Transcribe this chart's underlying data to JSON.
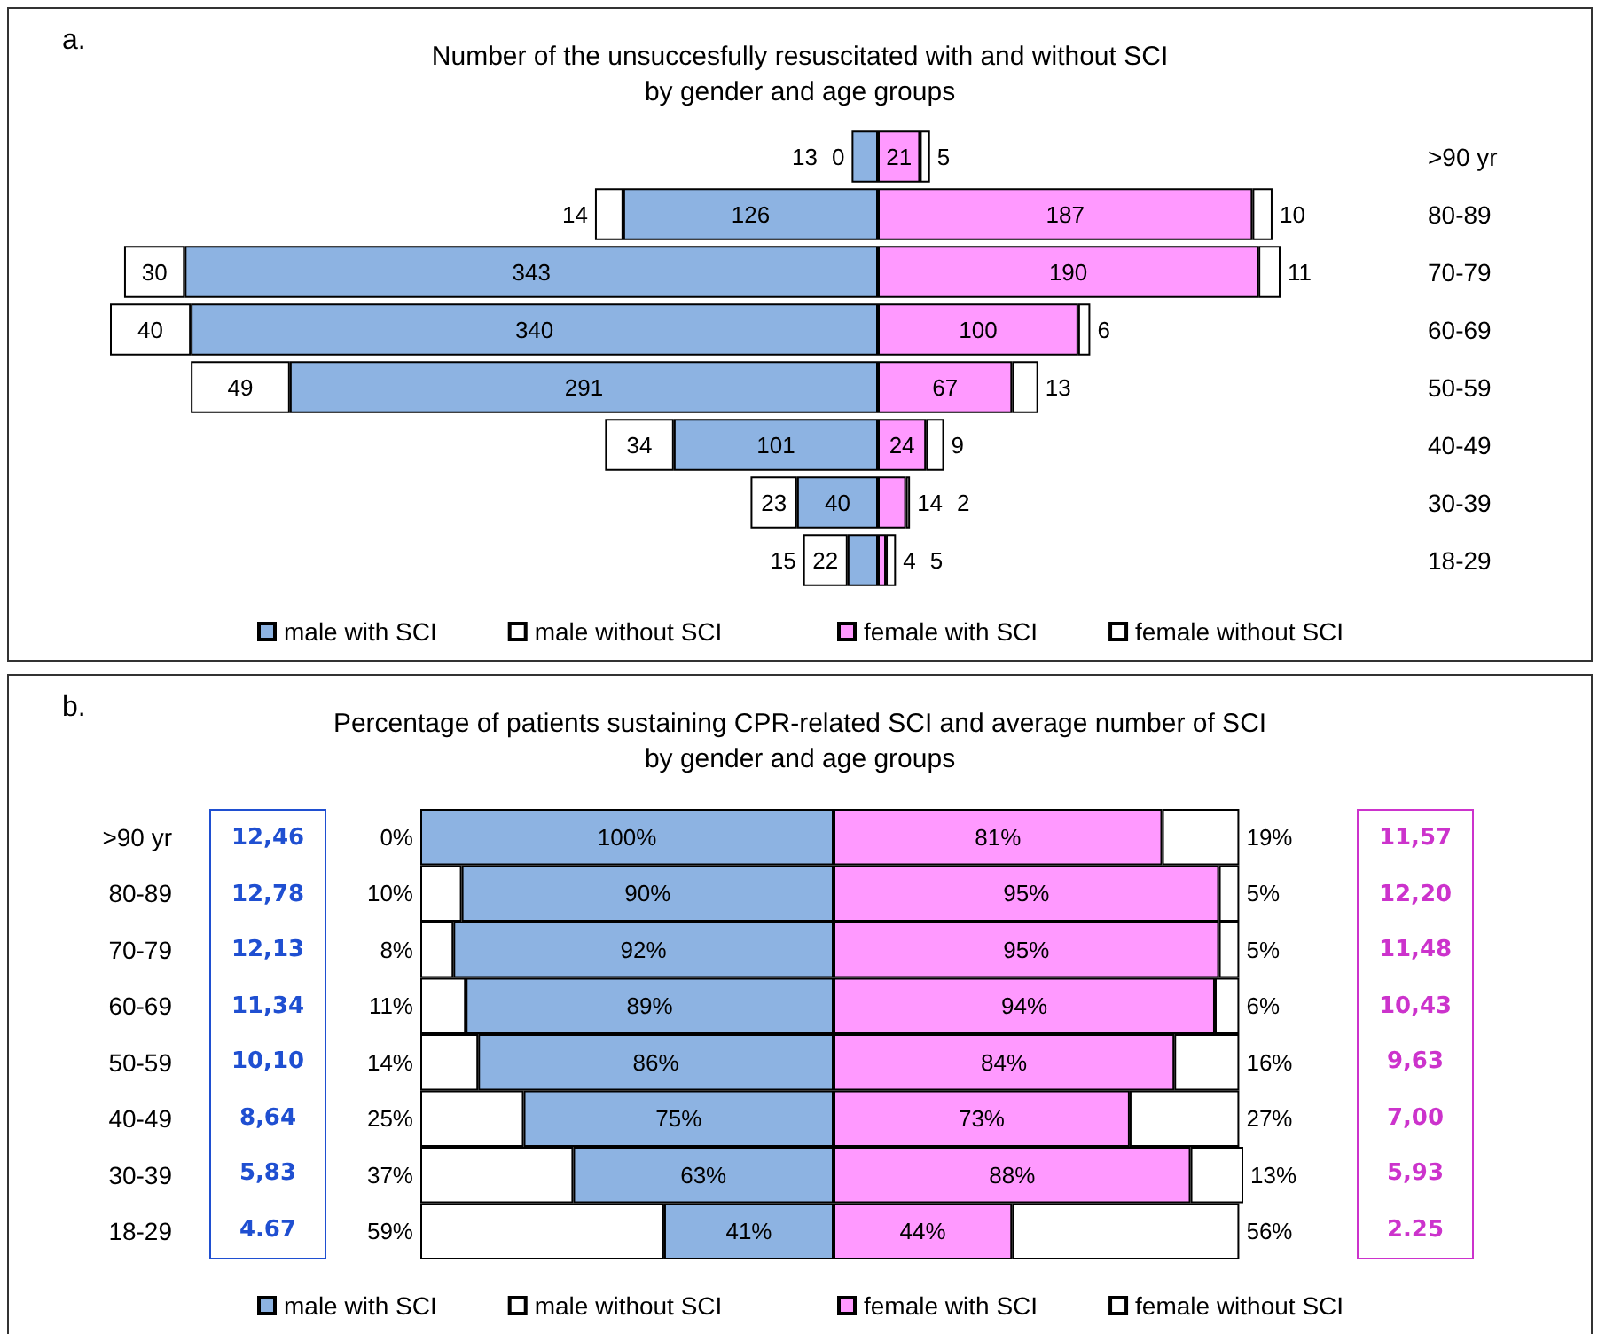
{
  "chart_data": [
    {
      "type": "bar",
      "orientation": "horizontal",
      "stacked": true,
      "title": "Number of the unsuccesfully resuscitated with and without SCI\nby gender and age groups",
      "annotations": [
        "a."
      ],
      "categories": [
        ">90 yr",
        "80-89",
        "70-79",
        "60-69",
        "50-59",
        "40-49",
        "30-39",
        "18-29"
      ],
      "legend": "bottom",
      "tick_labels": "y",
      "series": [
        {
          "name": "male with SCI",
          "color": "#8db3e2",
          "values": [
            13,
            126,
            343,
            340,
            291,
            101,
            40,
            15
          ],
          "value_labels": [
            "13",
            "126",
            "343",
            "340",
            "291",
            "101",
            "40",
            "15"
          ]
        },
        {
          "name": "male without SCI",
          "color": "#ffffff",
          "values": [
            0,
            14,
            30,
            40,
            49,
            34,
            23,
            22
          ],
          "value_labels": [
            "0",
            "14",
            "30",
            "40",
            "49",
            "34",
            "23",
            "22"
          ]
        }
      ]
    },
    {
      "type": "bar",
      "orientation": "horizontal",
      "stacked": true,
      "categories": [
        null,
        null,
        null,
        null,
        null,
        null,
        null,
        null
      ],
      "legend": "bottom",
      "series": [
        {
          "name": "female with SCI",
          "color": "#ff99ff",
          "values": [
            21,
            187,
            190,
            100,
            67,
            24,
            14,
            4
          ],
          "value_labels": [
            "21",
            "187",
            "190",
            "100",
            "67",
            "24",
            "14",
            "4"
          ]
        },
        {
          "name": "female without SCI",
          "color": "#ffffff",
          "values": [
            5,
            10,
            11,
            6,
            13,
            9,
            2,
            5
          ],
          "value_labels": [
            "5",
            "10",
            "11",
            "6",
            "13",
            "9",
            "2",
            "5"
          ]
        }
      ]
    },
    {
      "type": "other",
      "color": "#1f4fd1",
      "annotations": [
        "12,46",
        "12,78",
        "12,13",
        "11,34",
        "10,10",
        "8,64",
        "5,83",
        "4.67"
      ]
    },
    {
      "type": "bar",
      "orientation": "horizontal",
      "stacked": true,
      "title": "Percentage of patients sustaining CPR-related SCI and average number of SCI\nby gender and age groups",
      "annotations": [
        "b."
      ],
      "categories": [
        ">90 yr",
        "80-89",
        "70-79",
        "60-69",
        "50-59",
        "40-49",
        "30-39",
        "18-29"
      ],
      "legend": "bottom",
      "tick_labels": "y",
      "series": [
        {
          "name": "male with SCI",
          "color": "#8db3e2",
          "values": [
            100,
            90,
            92,
            89,
            86,
            75,
            63,
            41
          ],
          "value_labels": [
            "100%",
            "90%",
            "92%",
            "89%",
            "86%",
            "75%",
            "63%",
            "41%"
          ]
        },
        {
          "name": "male without SCI",
          "color": "#ffffff",
          "values": [
            0,
            10,
            8,
            11,
            14,
            25,
            37,
            59
          ],
          "value_labels": [
            "0%",
            "10%",
            "8%",
            "11%",
            "14%",
            "25%",
            "37%",
            "59%"
          ]
        }
      ]
    },
    {
      "type": "bar",
      "orientation": "horizontal",
      "stacked": true,
      "categories": [
        null,
        null,
        null,
        null,
        null,
        null,
        null,
        null
      ],
      "legend": "bottom",
      "series": [
        {
          "name": "female with SCI",
          "color": "#ff99ff",
          "values": [
            81,
            95,
            95,
            94,
            84,
            73,
            88,
            44
          ],
          "value_labels": [
            "81%",
            "95%",
            "95%",
            "94%",
            "84%",
            "73%",
            "88%",
            "44%"
          ]
        },
        {
          "name": "female without SCI",
          "color": "#ffffff",
          "values": [
            19,
            5,
            5,
            6,
            16,
            27,
            13,
            56
          ],
          "value_labels": [
            "19%",
            "5%",
            "5%",
            "6%",
            "16%",
            "27%",
            "13%",
            "56%"
          ]
        }
      ]
    },
    {
      "type": "other",
      "color": "#cc33cc",
      "annotations": [
        "11,57",
        "12,20",
        "11,48",
        "10,43",
        "9,63",
        "7,00",
        "5,93",
        "2.25"
      ]
    }
  ]
}
